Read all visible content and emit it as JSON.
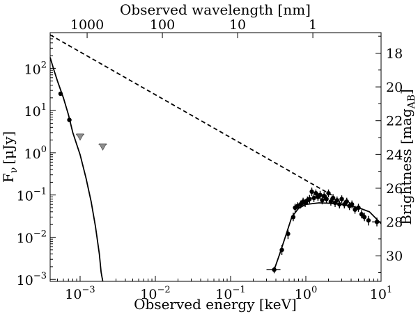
{
  "chart_data": {
    "type": "scatter",
    "xlabel_bottom": "Observed energy [keV]",
    "xlabel_top": "Observed wavelength [nm]",
    "ylabel_left_prefix": "F",
    "ylabel_left_subscript": "ν",
    "ylabel_left_units": "[μJy]",
    "ylabel_right_prefix": "Brightness [mag",
    "ylabel_right_subscript": "AB",
    "ylabel_right_suffix": "]",
    "x_scale": "log",
    "y_scale": "log",
    "xlim": [
      0.0004,
      10
    ],
    "ylim": [
      0.0009,
      700
    ],
    "x_ticks": [
      {
        "value": 0.001,
        "label": "10",
        "exp": "−3"
      },
      {
        "value": 0.01,
        "label": "10",
        "exp": "−2"
      },
      {
        "value": 0.1,
        "label": "10",
        "exp": "−1"
      },
      {
        "value": 1,
        "label": "10",
        "exp": "0"
      },
      {
        "value": 10,
        "label": "10",
        "exp": "1"
      }
    ],
    "y_ticks": [
      {
        "value": 0.001,
        "label": "10",
        "exp": "−3"
      },
      {
        "value": 0.01,
        "label": "10",
        "exp": "−2"
      },
      {
        "value": 0.1,
        "label": "10",
        "exp": "−1"
      },
      {
        "value": 1,
        "label": "10",
        "exp": "0"
      },
      {
        "value": 10,
        "label": "10",
        "exp": "1"
      },
      {
        "value": 100,
        "label": "10",
        "exp": "2"
      }
    ],
    "top_ticks": [
      {
        "wavelength_nm": 1000,
        "label": "1000"
      },
      {
        "wavelength_nm": 100,
        "label": "100"
      },
      {
        "wavelength_nm": 10,
        "label": "10"
      },
      {
        "wavelength_nm": 1,
        "label": "1"
      }
    ],
    "right_ticks": [
      {
        "mag": 18,
        "label": "18"
      },
      {
        "mag": 20,
        "label": "20"
      },
      {
        "mag": 22,
        "label": "22"
      },
      {
        "mag": 24,
        "label": "24"
      },
      {
        "mag": 26,
        "label": "26"
      },
      {
        "mag": 28,
        "label": "28"
      },
      {
        "mag": 30,
        "label": "30"
      }
    ],
    "series": [
      {
        "kind": "model-line",
        "dashed": false,
        "points": [
          [
            0.0004,
            180
          ],
          [
            0.00045,
            90
          ],
          [
            0.0005,
            50
          ],
          [
            0.0006,
            20
          ],
          [
            0.0007,
            8
          ],
          [
            0.0008,
            3
          ],
          [
            0.001,
            0.9
          ],
          [
            0.0012,
            0.25
          ],
          [
            0.0014,
            0.07
          ],
          [
            0.0016,
            0.018
          ],
          [
            0.0018,
            0.004
          ],
          [
            0.0019,
            0.0015
          ],
          [
            0.002,
            0.0009
          ]
        ]
      },
      {
        "kind": "model-line",
        "dashed": true,
        "points": [
          [
            0.0004,
            620
          ],
          [
            2.2,
            0.1
          ]
        ]
      },
      {
        "kind": "model-line",
        "dashed": false,
        "points": [
          [
            0.38,
            0.0017
          ],
          [
            0.45,
            0.004
          ],
          [
            0.55,
            0.012
          ],
          [
            0.65,
            0.03
          ],
          [
            0.8,
            0.048
          ],
          [
            1.0,
            0.06
          ],
          [
            1.5,
            0.065
          ],
          [
            2.0,
            0.064
          ],
          [
            3.0,
            0.06
          ],
          [
            5.0,
            0.05
          ],
          [
            7.0,
            0.04
          ],
          [
            10.0,
            0.021
          ]
        ]
      },
      {
        "kind": "detections",
        "marker": "circle",
        "points": [
          {
            "x": 0.00055,
            "y": 25
          },
          {
            "x": 0.00072,
            "y": 6
          },
          {
            "x": 0.38,
            "y": 0.0017,
            "xerr": [
              0.3,
              0.46
            ],
            "yerr": [
              0.0014,
              0.002
            ]
          },
          {
            "x": 0.48,
            "y": 0.005,
            "yerr": [
              0.0038,
              0.0065
            ]
          },
          {
            "x": 0.58,
            "y": 0.012,
            "yerr": [
              0.009,
              0.015
            ]
          },
          {
            "x": 0.68,
            "y": 0.03,
            "yerr": [
              0.024,
              0.038
            ]
          },
          {
            "x": 0.72,
            "y": 0.05,
            "yerr": [
              0.04,
              0.062
            ]
          },
          {
            "x": 0.78,
            "y": 0.055,
            "yerr": [
              0.045,
              0.067
            ]
          },
          {
            "x": 0.85,
            "y": 0.06,
            "yerr": [
              0.048,
              0.074
            ]
          },
          {
            "x": 0.92,
            "y": 0.07,
            "yerr": [
              0.056,
              0.086
            ]
          },
          {
            "x": 0.98,
            "y": 0.065,
            "yerr": [
              0.052,
              0.08
            ]
          },
          {
            "x": 1.05,
            "y": 0.075,
            "yerr": [
              0.06,
              0.092
            ]
          },
          {
            "x": 1.12,
            "y": 0.08,
            "yerr": [
              0.064,
              0.1
            ]
          },
          {
            "x": 1.2,
            "y": 0.12,
            "yerr": [
              0.095,
              0.15
            ]
          },
          {
            "x": 1.28,
            "y": 0.085,
            "yerr": [
              0.068,
              0.105
            ]
          },
          {
            "x": 1.36,
            "y": 0.11,
            "yerr": [
              0.088,
              0.135
            ]
          },
          {
            "x": 1.45,
            "y": 0.09,
            "yerr": [
              0.072,
              0.11
            ]
          },
          {
            "x": 1.55,
            "y": 0.1,
            "yerr": [
              0.08,
              0.125
            ]
          },
          {
            "x": 1.65,
            "y": 0.075,
            "yerr": [
              0.06,
              0.092
            ]
          },
          {
            "x": 1.75,
            "y": 0.095,
            "yerr": [
              0.076,
              0.117
            ]
          },
          {
            "x": 1.88,
            "y": 0.08,
            "yerr": [
              0.064,
              0.098
            ]
          },
          {
            "x": 2.0,
            "y": 0.11,
            "yerr": [
              0.088,
              0.135
            ]
          },
          {
            "x": 2.15,
            "y": 0.07,
            "yerr": [
              0.056,
              0.086
            ]
          },
          {
            "x": 2.3,
            "y": 0.085,
            "yerr": [
              0.068,
              0.105
            ]
          },
          {
            "x": 2.45,
            "y": 0.065,
            "yerr": [
              0.052,
              0.08
            ]
          },
          {
            "x": 2.6,
            "y": 0.075,
            "yerr": [
              0.06,
              0.092
            ]
          },
          {
            "x": 2.8,
            "y": 0.06,
            "yerr": [
              0.048,
              0.074
            ]
          },
          {
            "x": 3.0,
            "y": 0.08,
            "yerr": [
              0.064,
              0.098
            ]
          },
          {
            "x": 3.25,
            "y": 0.06,
            "yerr": [
              0.048,
              0.074
            ]
          },
          {
            "x": 3.5,
            "y": 0.07,
            "yerr": [
              0.056,
              0.086
            ]
          },
          {
            "x": 3.8,
            "y": 0.055,
            "yerr": [
              0.044,
              0.068
            ]
          },
          {
            "x": 4.1,
            "y": 0.06,
            "yerr": [
              0.048,
              0.074
            ]
          },
          {
            "x": 4.5,
            "y": 0.045,
            "yerr": [
              0.036,
              0.056
            ]
          },
          {
            "x": 5.0,
            "y": 0.05,
            "yerr": [
              0.04,
              0.062
            ]
          },
          {
            "x": 5.5,
            "y": 0.035,
            "yerr": [
              0.028,
              0.044
            ]
          },
          {
            "x": 6.0,
            "y": 0.03,
            "yerr": [
              0.024,
              0.038
            ]
          },
          {
            "x": 6.8,
            "y": 0.025,
            "yerr": [
              0.019,
              0.032
            ]
          },
          {
            "x": 8.8,
            "y": 0.023,
            "xerr": [
              7.6,
              9.9
            ],
            "yerr": [
              0.018,
              0.029
            ]
          }
        ]
      },
      {
        "kind": "upper-limits",
        "marker": "triangle-down",
        "color": "#8f8f8f",
        "points": [
          {
            "x": 0.001,
            "y": 2.4
          },
          {
            "x": 0.002,
            "y": 1.4
          }
        ]
      }
    ],
    "grid": false,
    "legend": "none"
  }
}
